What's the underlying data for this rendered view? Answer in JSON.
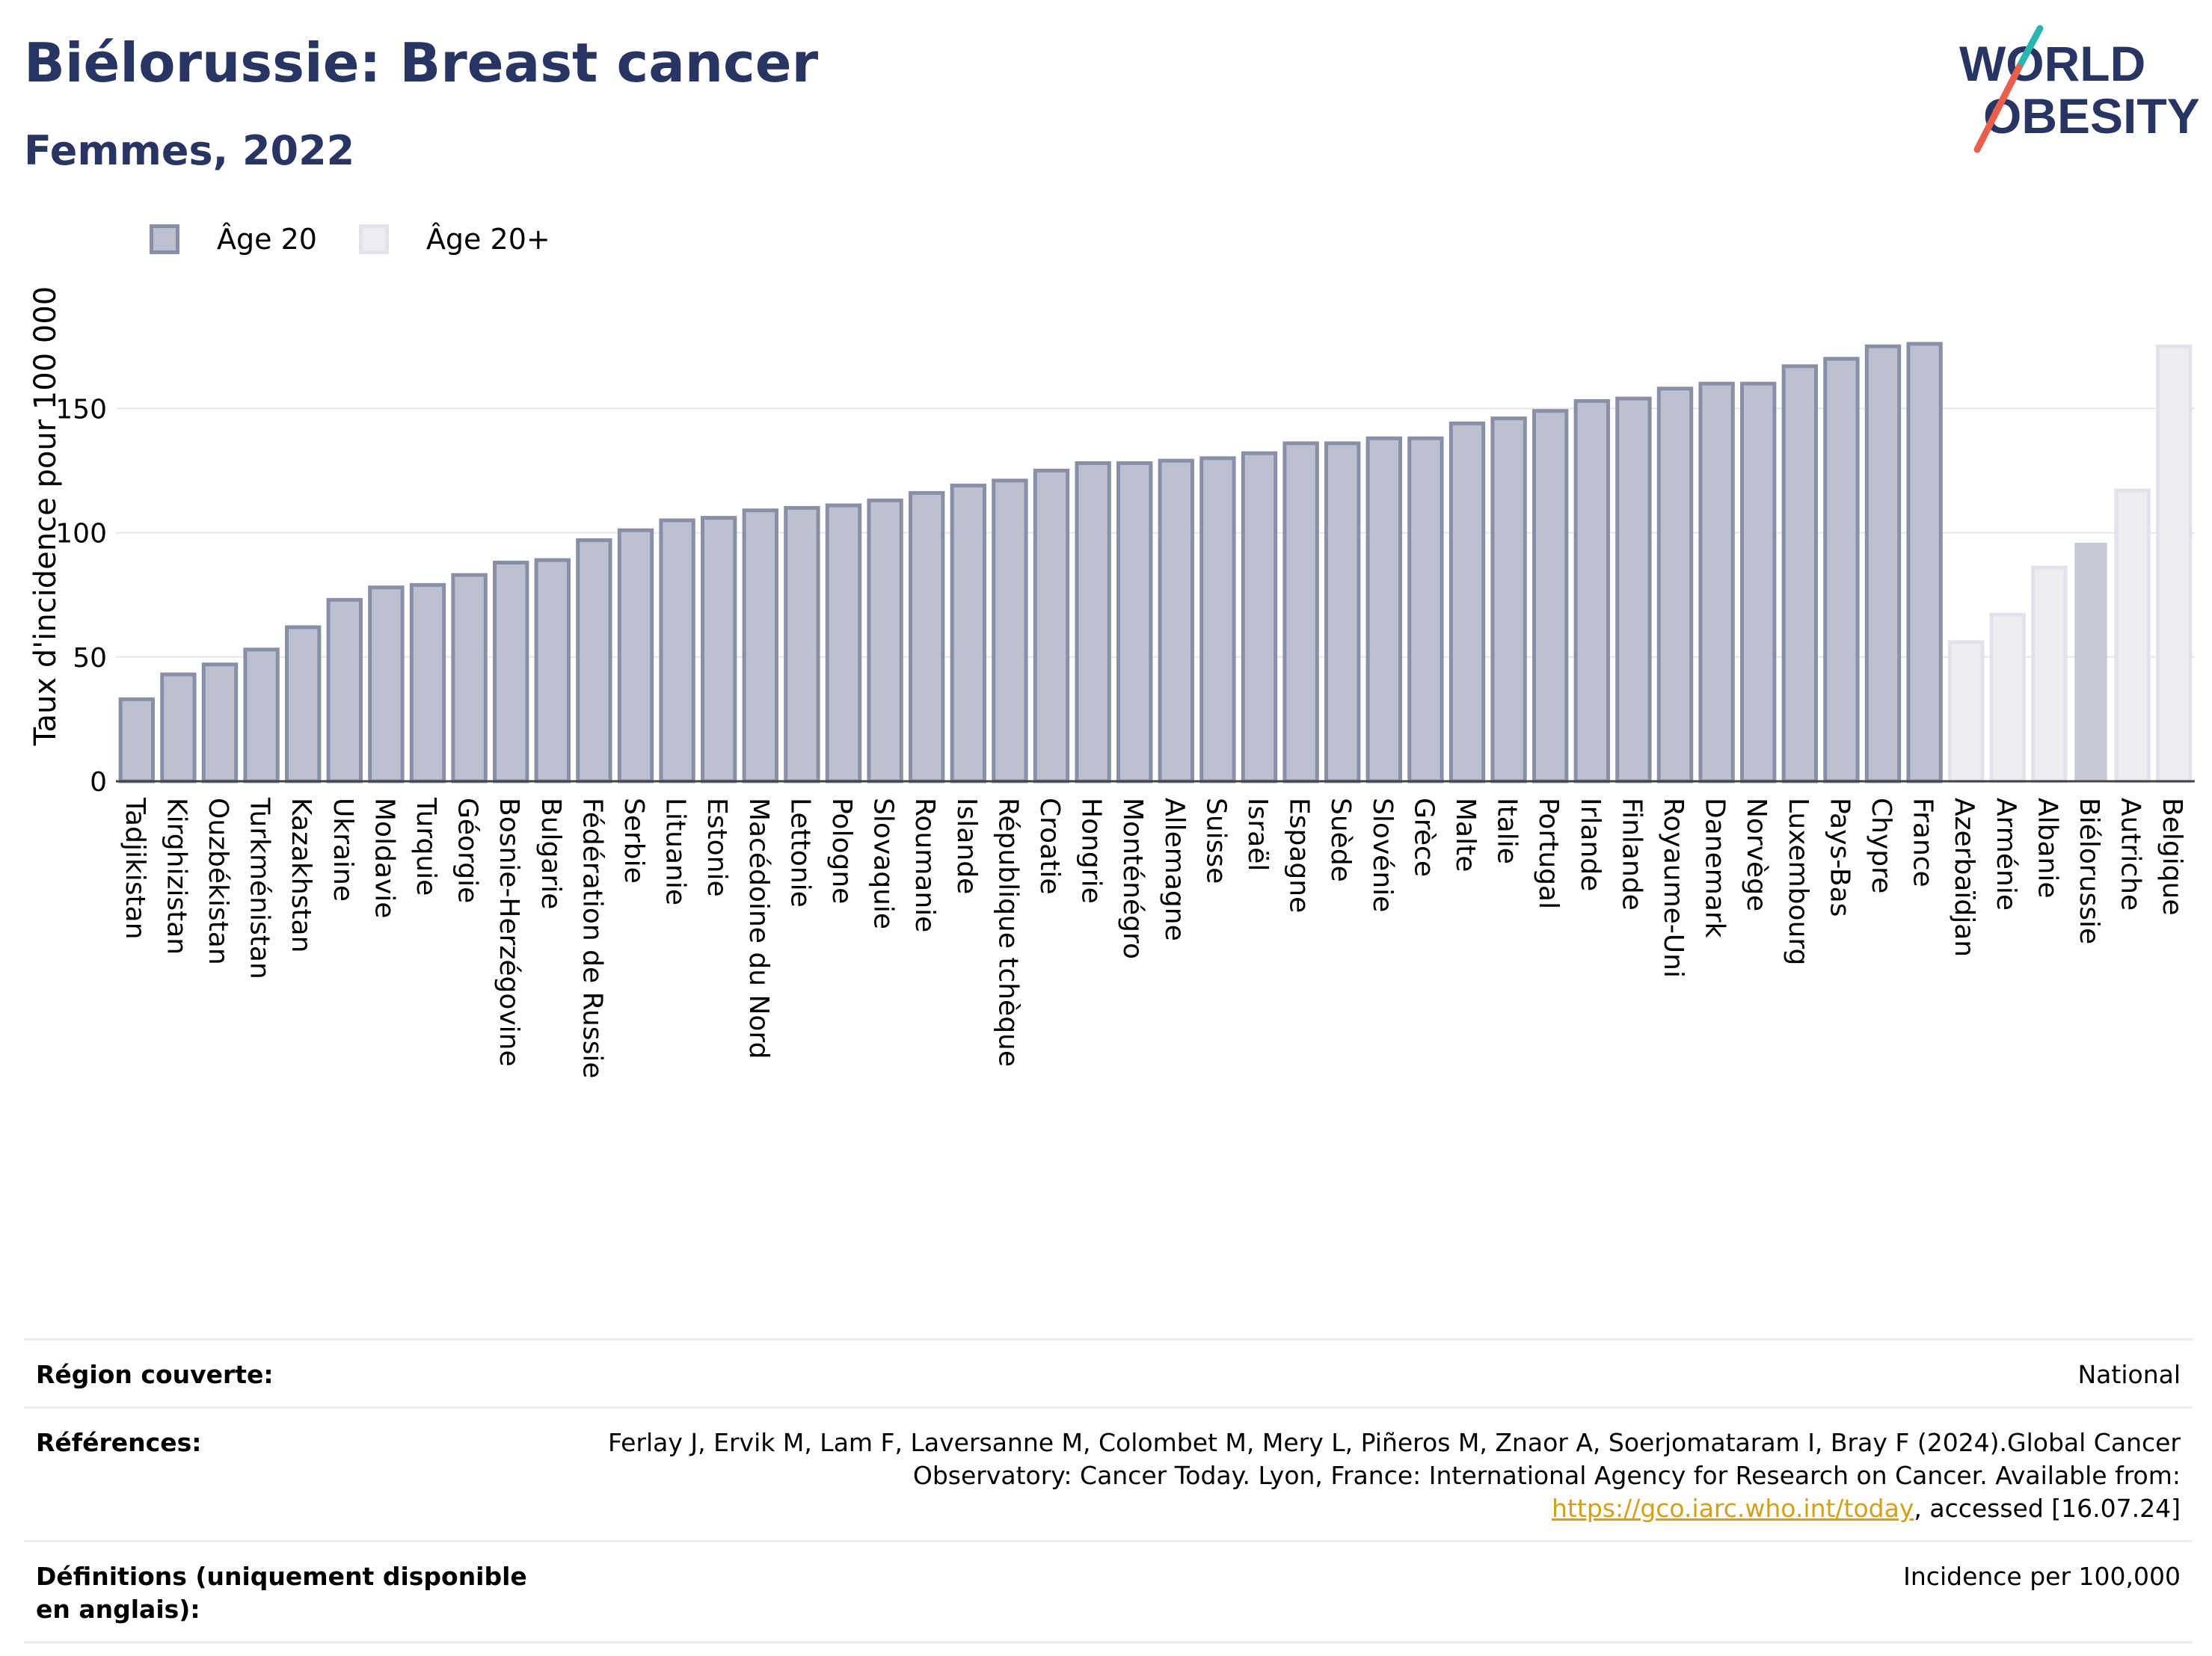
{
  "header": {
    "title": "Biélorussie: Breast cancer",
    "subtitle": "Femmes, 2022"
  },
  "logo": {
    "line1": "WORLD",
    "line2": "OBESITY"
  },
  "legend": [
    {
      "label": "Âge 20",
      "color": "#bdc0d0"
    },
    {
      "label": "Âge 20+",
      "color": "#eeeef2"
    }
  ],
  "colors": {
    "bar_main_fill": "#bdc0d0",
    "bar_main_stroke": "#8a8fa8",
    "bar_light_fill": "#eeeef2",
    "bar_light_stroke": "#e2e3ea",
    "bar_highlight_fill": "#c6c8d4",
    "title": "#283462",
    "logo_slash_top": "#2ab5b0",
    "logo_slash_bottom": "#e8604c"
  },
  "chart_data": {
    "type": "bar",
    "ylabel": "Taux d'incidence pour 100 000",
    "xlabel": "",
    "ylim": [
      0,
      185
    ],
    "yticks": [
      0,
      50,
      100,
      150
    ],
    "grid": true,
    "legend_position": "top-left",
    "categories": [
      "Tadjikistan",
      "Kirghizistan",
      "Ouzbékistan",
      "Turkménistan",
      "Kazakhstan",
      "Ukraine",
      "Moldavie",
      "Turquie",
      "Géorgie",
      "Bosnie-Herzégovine",
      "Bulgarie",
      "Fédération de Russie",
      "Serbie",
      "Lituanie",
      "Estonie",
      "Macédoine du Nord",
      "Lettonie",
      "Pologne",
      "Slovaquie",
      "Roumanie",
      "Islande",
      "République tchèque",
      "Croatie",
      "Hongrie",
      "Monténégro",
      "Allemagne",
      "Suisse",
      "Israël",
      "Espagne",
      "Suède",
      "Slovénie",
      "Grèce",
      "Malte",
      "Italie",
      "Portugal",
      "Irlande",
      "Finlande",
      "Royaume-Uni",
      "Danemark",
      "Norvège",
      "Luxembourg",
      "Pays-Bas",
      "Chypre",
      "France",
      "Azerbaïdjan",
      "Arménie",
      "Albanie",
      "Biélorussie",
      "Autriche",
      "Belgique"
    ],
    "values": [
      33,
      43,
      47,
      53,
      62,
      73,
      78,
      79,
      83,
      88,
      89,
      97,
      101,
      105,
      106,
      109,
      110,
      111,
      113,
      116,
      119,
      121,
      125,
      128,
      128,
      129,
      130,
      132,
      136,
      136,
      138,
      138,
      144,
      146,
      149,
      153,
      154,
      158,
      160,
      160,
      167,
      170,
      175,
      176,
      56,
      67,
      86,
      96,
      117,
      175
    ],
    "series_group": [
      "Âge 20",
      "Âge 20",
      "Âge 20",
      "Âge 20",
      "Âge 20",
      "Âge 20",
      "Âge 20",
      "Âge 20",
      "Âge 20",
      "Âge 20",
      "Âge 20",
      "Âge 20",
      "Âge 20",
      "Âge 20",
      "Âge 20",
      "Âge 20",
      "Âge 20",
      "Âge 20",
      "Âge 20",
      "Âge 20",
      "Âge 20",
      "Âge 20",
      "Âge 20",
      "Âge 20",
      "Âge 20",
      "Âge 20",
      "Âge 20",
      "Âge 20",
      "Âge 20",
      "Âge 20",
      "Âge 20",
      "Âge 20",
      "Âge 20",
      "Âge 20",
      "Âge 20",
      "Âge 20",
      "Âge 20",
      "Âge 20",
      "Âge 20",
      "Âge 20",
      "Âge 20",
      "Âge 20",
      "Âge 20",
      "Âge 20",
      "Âge 20+",
      "Âge 20+",
      "Âge 20+",
      "highlight",
      "Âge 20+",
      "Âge 20+"
    ]
  },
  "footer": {
    "region_label": "Région couverte:",
    "region_value": "National",
    "references_label": "Références:",
    "references_text": "Ferlay J, Ervik M, Lam F, Laversanne M, Colombet M, Mery L, Piñeros M, Znaor A, Soerjomataram I, Bray F (2024).Global Cancer Observatory: Cancer Today. Lyon, France: International Agency for Research on Cancer. Available from:",
    "references_link": "https://gco.iarc.who.int/today",
    "references_tail": ", accessed [16.07.24]",
    "definitions_label": "Définitions (uniquement disponible en anglais):",
    "definitions_value": "Incidence per 100,000"
  }
}
